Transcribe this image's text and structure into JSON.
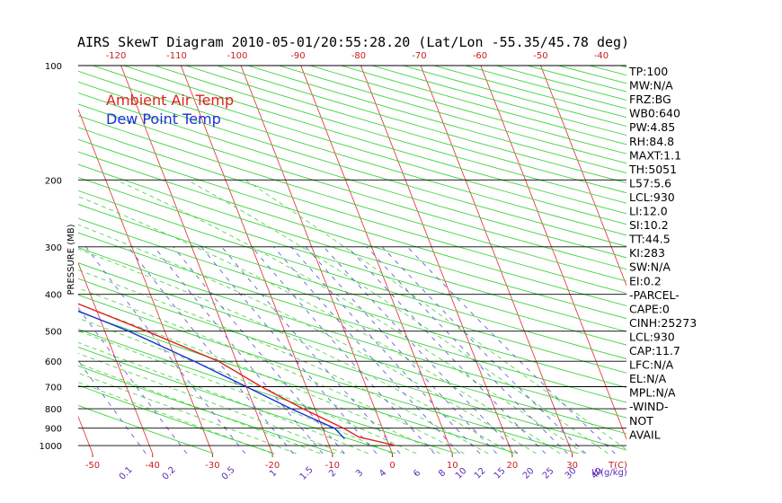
{
  "title": "AIRS SkewT Diagram 2010-05-01/20:55:28.20 (Lat/Lon -55.35/45.78 deg)",
  "legend": [
    {
      "label": "Ambient Air Temp",
      "color": "#e02020"
    },
    {
      "label": "Dew Point Temp",
      "color": "#1f2fd6"
    }
  ],
  "indices": [
    "TP:100",
    "MW:N/A",
    "FRZ:BG",
    "WB0:640",
    "PW:4.85",
    "RH:84.8",
    "MAXT:1.1",
    "TH:5051",
    "L57:5.6",
    "LCL:930",
    "LI:12.0",
    "SI:10.2",
    "TT:44.5",
    "KI:283",
    "SW:N/A",
    "EI:0.2",
    "-PARCEL-",
    "CAPE:0",
    "CINH:25273",
    "LCL:930",
    "CAP:11.7",
    "LFC:N/A",
    "EL:N/A",
    "MPL:N/A",
    "-WIND-",
    "NOT",
    "AVAIL"
  ],
  "chart_data": {
    "type": "line",
    "title": "AIRS SkewT Diagram 2010-05-01/20:55:28.20 (Lat/Lon -55.35/45.78 deg)",
    "ylabel": "PRESSURE (MB)",
    "y_scale": "log",
    "ylim": [
      1050,
      100
    ],
    "y_ticks": [
      100,
      200,
      300,
      400,
      500,
      600,
      700,
      800,
      900,
      1000
    ],
    "x_bottom_label": "T(C)",
    "x_bottom_ticks": [
      -50,
      -40,
      -30,
      -20,
      -10,
      0,
      10,
      20,
      30
    ],
    "x_top_ticks": [
      -120,
      -110,
      -100,
      -90,
      -80,
      -70,
      -60,
      -50,
      -40
    ],
    "mixing_ratio_label": "W(g/kg)",
    "mixing_ratio_ticks": [
      "0.1",
      "0.2",
      "0.5",
      "1",
      "1.5",
      "2",
      "3",
      "4",
      "6",
      "8",
      "10",
      "12",
      "15",
      "20",
      "25",
      "30",
      "40"
    ],
    "series": [
      {
        "name": "Ambient Air Temp",
        "points": [
          [
            1000,
            1.1
          ],
          [
            950,
            -4.5
          ],
          [
            900,
            -6.5
          ],
          [
            800,
            -12.0
          ],
          [
            700,
            -17.5
          ],
          [
            600,
            -23.0
          ],
          [
            500,
            -33.0
          ],
          [
            400,
            -46.0
          ],
          [
            300,
            -50.0
          ],
          [
            250,
            -49.0
          ],
          [
            200,
            -47.0
          ],
          [
            175,
            -51.0
          ],
          [
            150,
            -56.0
          ],
          [
            125,
            -61.0
          ],
          [
            100,
            -64.0
          ]
        ]
      },
      {
        "name": "Dew Point Temp",
        "points": [
          [
            960,
            -7.0
          ],
          [
            900,
            -8.0
          ],
          [
            800,
            -14.0
          ],
          [
            700,
            -20.0
          ],
          [
            600,
            -27.0
          ],
          [
            500,
            -36.0
          ],
          [
            400,
            -49.0
          ],
          [
            300,
            -63.0
          ],
          [
            250,
            -74.0
          ],
          [
            200,
            -84.0
          ],
          [
            175,
            -87.0
          ],
          [
            150,
            -91.0
          ],
          [
            125,
            -92.0
          ],
          [
            110,
            -92.0
          ],
          [
            100,
            -91.0
          ]
        ]
      }
    ]
  }
}
